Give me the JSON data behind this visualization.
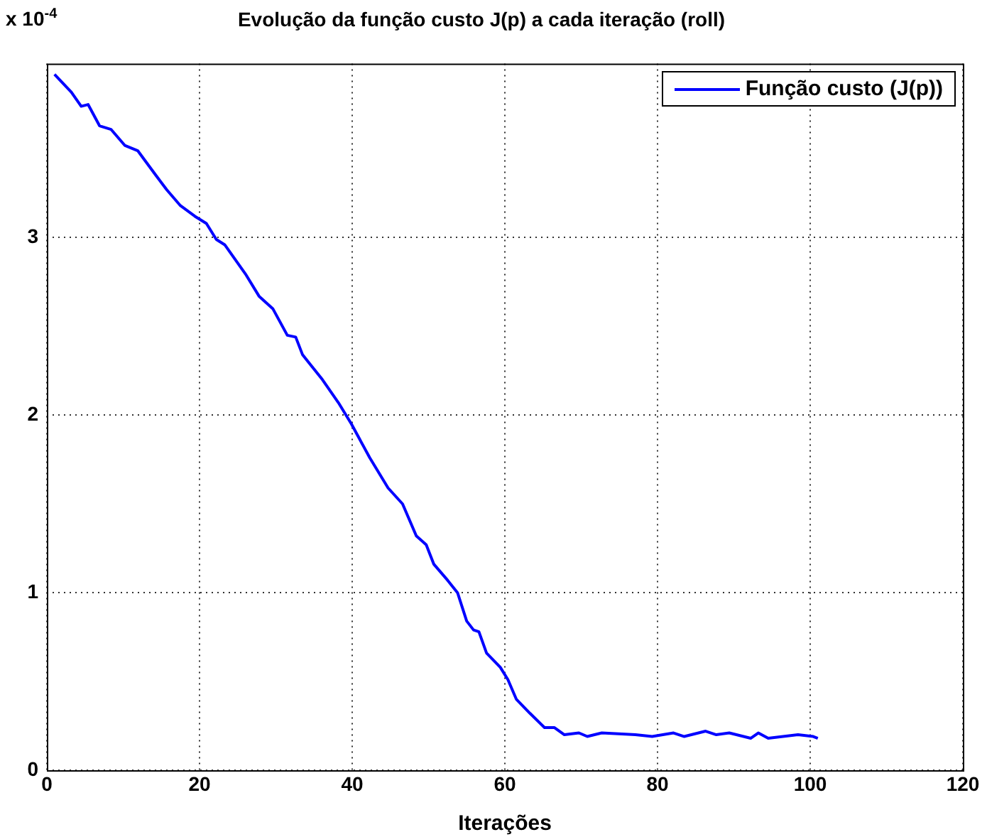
{
  "chart_data": {
    "type": "line",
    "title": "Evolução da função custo J(p) a cada iteração (roll)",
    "xlabel": "Iterações",
    "annotations": [
      "x 10$^{-4}$"
    ],
    "x": [
      1,
      3.2,
      4.5,
      5.4,
      6.9,
      8.4,
      10.2,
      11.9,
      14.3,
      15.7,
      17.5,
      19.4,
      20.9,
      22.2,
      23.3,
      26.1,
      27.8,
      29.6,
      31.5,
      32.6,
      33.5,
      36.1,
      38.2,
      39.9,
      42.3,
      44.7,
      46.6,
      48.4,
      49.7,
      50.7,
      52.5,
      53.8,
      55,
      55.9,
      56.6,
      57.6,
      59.4,
      60.4,
      61.5,
      63.3,
      65.2,
      66.5,
      67.8,
      69.7,
      70.8,
      72.7,
      77.1,
      79.3,
      82.1,
      83.5,
      86.3,
      87.7,
      89.4,
      92.2,
      93.2,
      94.5,
      98.4,
      100.4,
      101
    ],
    "series": [
      {
        "name": "Função custo (J(p))",
        "color": "#0000ff",
        "values": [
          3.92,
          3.82,
          3.74,
          3.75,
          3.63,
          3.61,
          3.52,
          3.49,
          3.35,
          3.27,
          3.18,
          3.12,
          3.08,
          2.99,
          2.96,
          2.79,
          2.67,
          2.6,
          2.45,
          2.44,
          2.34,
          2.2,
          2.07,
          1.95,
          1.76,
          1.59,
          1.5,
          1.32,
          1.27,
          1.16,
          1.07,
          1,
          0.84,
          0.79,
          0.78,
          0.66,
          0.58,
          0.51,
          0.4,
          0.32,
          0.24,
          0.24,
          0.2,
          0.21,
          0.19,
          0.21,
          0.2,
          0.19,
          0.21,
          0.19,
          0.22,
          0.2,
          0.21,
          0.18,
          0.21,
          0.18,
          0.2,
          0.19,
          0.18
        ]
      }
    ],
    "xlim": [
      0,
      120
    ],
    "xticks": [
      0,
      20,
      40,
      60,
      80,
      100,
      120
    ],
    "ylim": [
      0,
      3.98
    ],
    "yticks": [
      0,
      1,
      2,
      3
    ],
    "grid": true,
    "legend": "top right",
    "line_style": "solid",
    "marker": "none"
  }
}
